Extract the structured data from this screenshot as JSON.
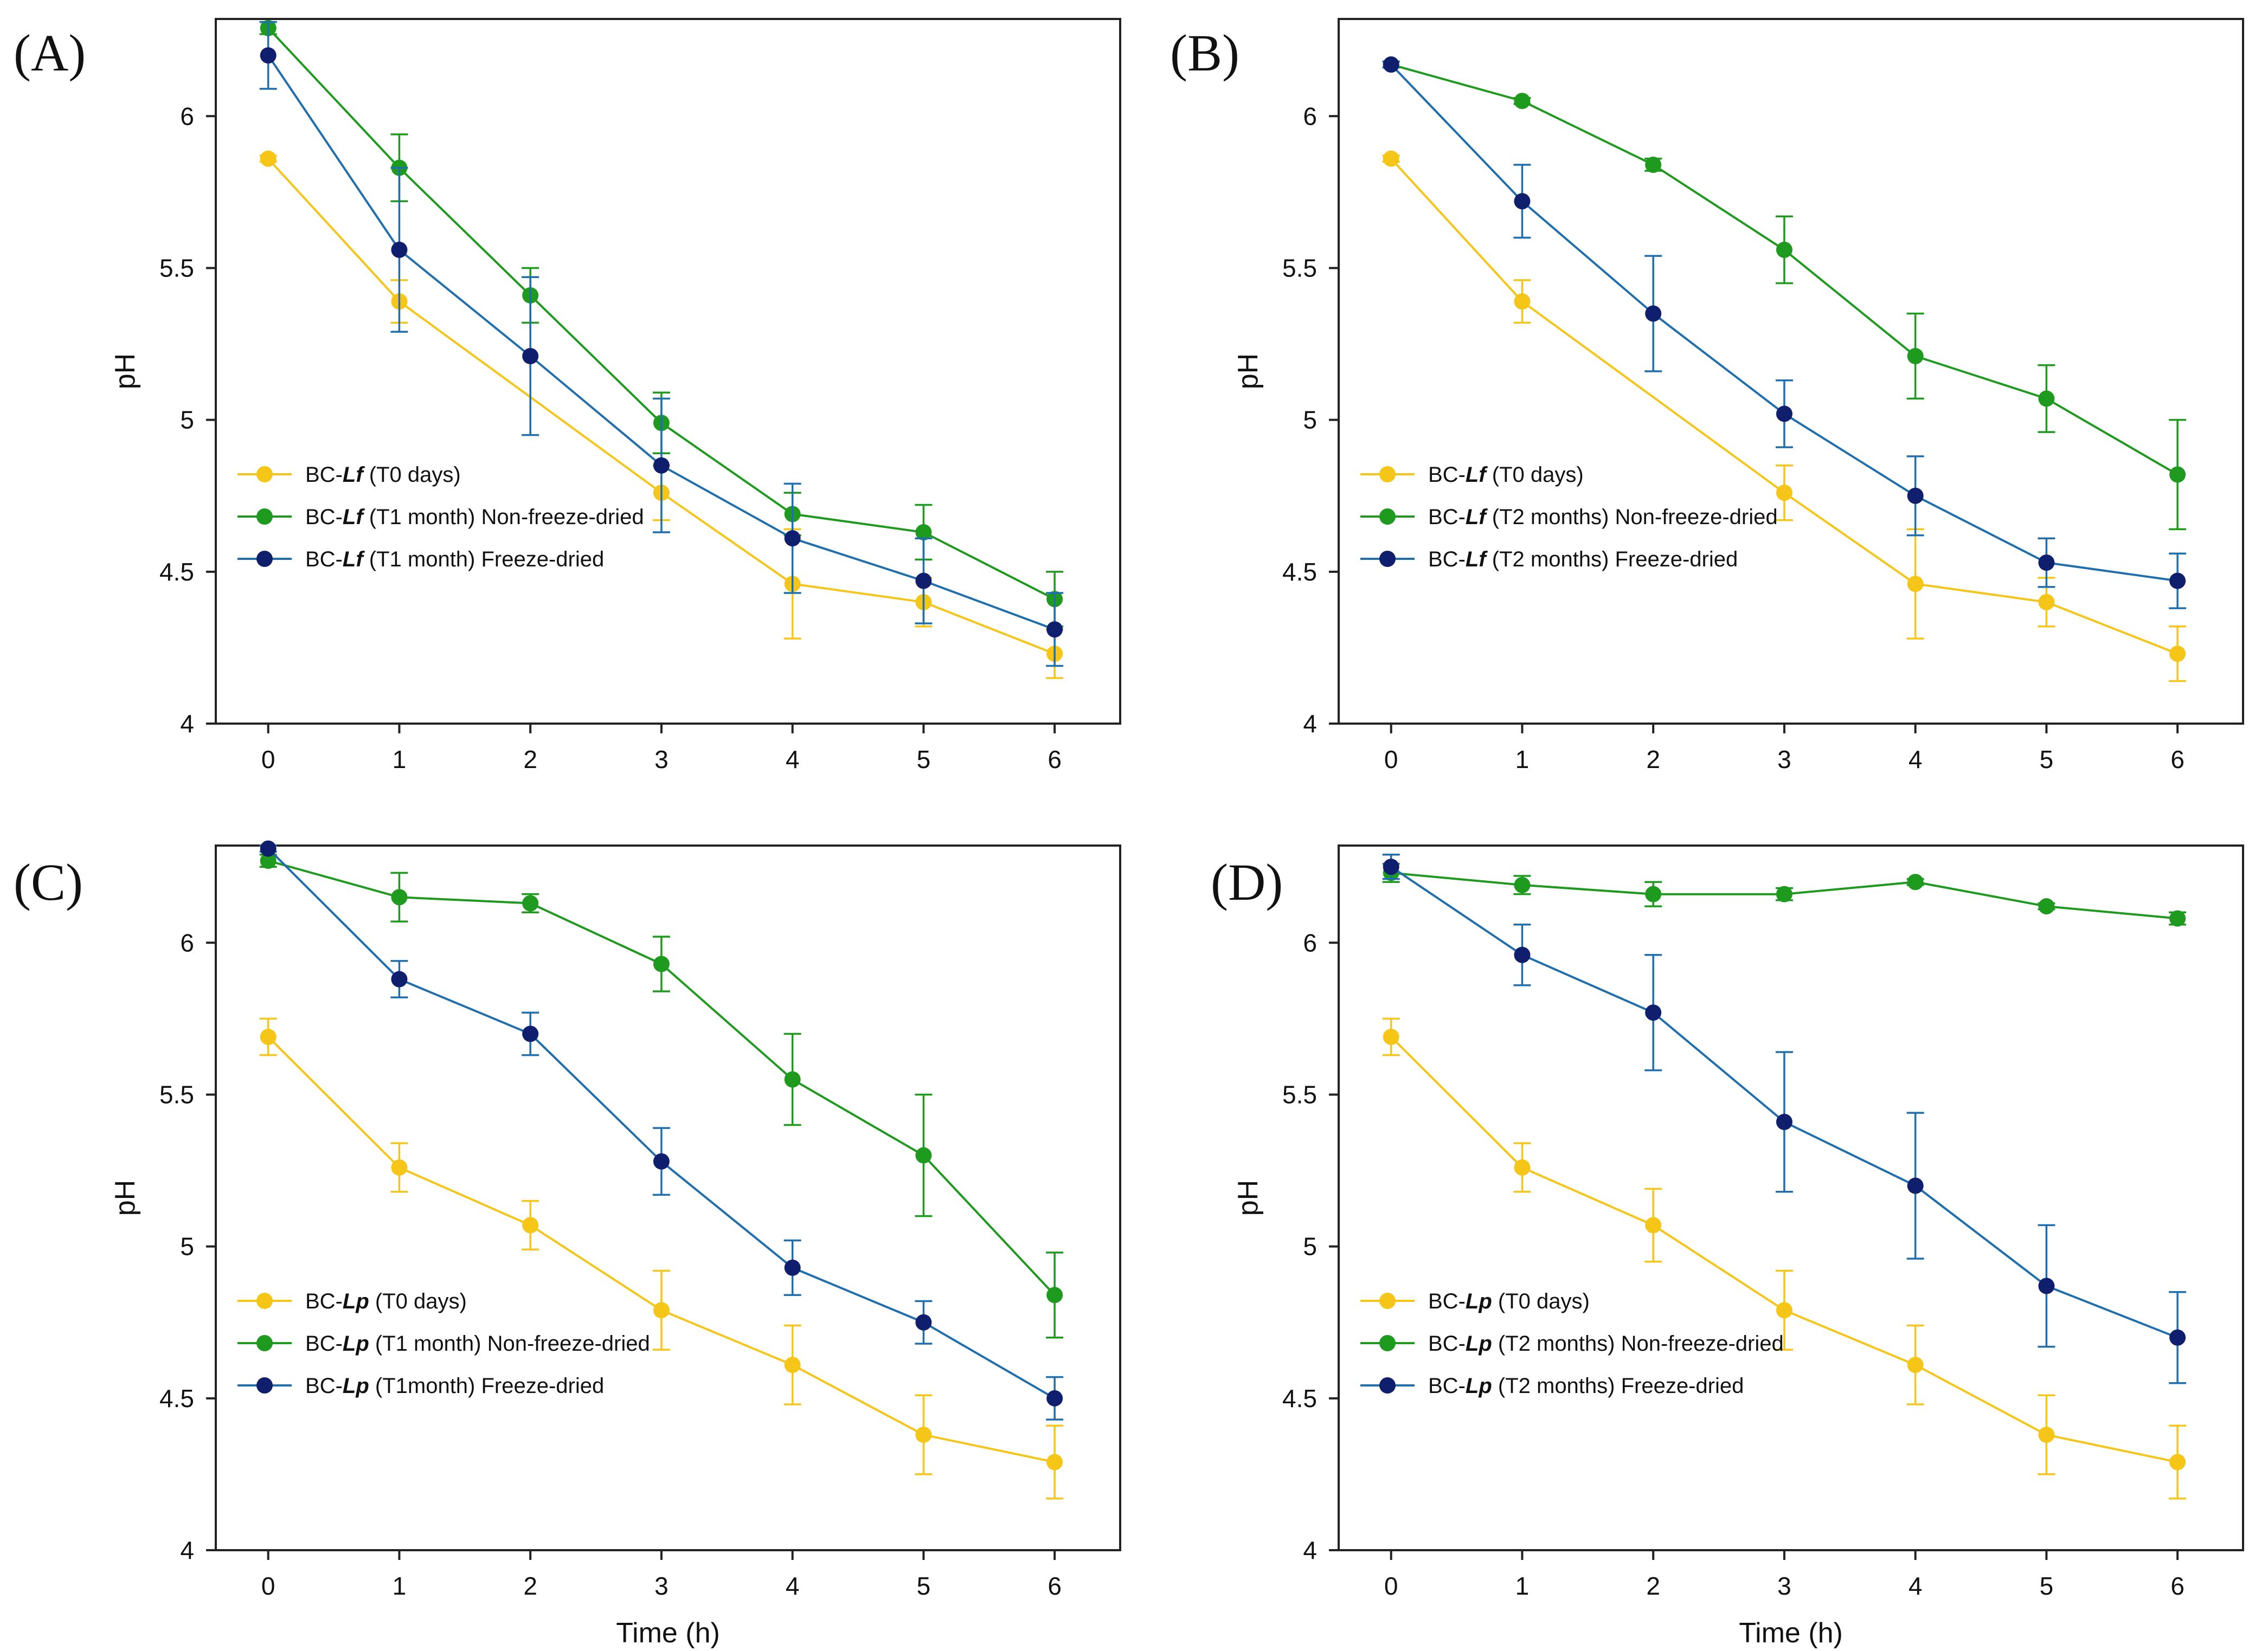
{
  "colors": {
    "t0": "#f5c518",
    "nonfreeze": "#1e9a1e",
    "freeze_line": "#1f6fae",
    "freeze_marker": "#0f1f6e",
    "axis": "#222222"
  },
  "chart_data": [
    {
      "type": "line",
      "panel_label": "(A)",
      "xlabel": "",
      "ylabel": "pH",
      "x": [
        0,
        1,
        2,
        3,
        4,
        5,
        6
      ],
      "xlim": [
        -0.4,
        6.5
      ],
      "ylim": [
        4,
        6.32
      ],
      "yticks": [
        "4",
        "4.5",
        "5",
        "5.5",
        "6"
      ],
      "xticks": [
        "0",
        "1",
        "2",
        "3",
        "4",
        "5",
        "6"
      ],
      "legend_position": "lower-left",
      "series": [
        {
          "key": "t0",
          "legend_prefix": "BC-",
          "legend_italic": "Lf",
          "legend_suffix": " (T0 days)",
          "values": [
            5.86,
            5.39,
            null,
            4.76,
            4.46,
            4.4,
            4.23
          ],
          "errors": [
            0.01,
            0.07,
            null,
            0.09,
            0.18,
            0.08,
            0.08
          ]
        },
        {
          "key": "nonfreeze",
          "legend_prefix": "BC-",
          "legend_italic": "Lf",
          "legend_suffix": " (T1 month) Non-freeze-dried",
          "values": [
            6.29,
            5.83,
            5.41,
            4.99,
            4.69,
            4.63,
            4.41
          ],
          "errors": [
            0.02,
            0.11,
            0.09,
            0.1,
            0.07,
            0.09,
            0.09
          ]
        },
        {
          "key": "freeze",
          "legend_prefix": "BC-",
          "legend_italic": "Lf",
          "legend_suffix": " (T1 month)  Freeze-dried",
          "values": [
            6.2,
            5.56,
            5.21,
            4.85,
            4.61,
            4.47,
            4.31
          ],
          "errors": [
            0.11,
            0.27,
            0.26,
            0.22,
            0.18,
            0.14,
            0.12
          ]
        }
      ]
    },
    {
      "type": "line",
      "panel_label": "(B)",
      "xlabel": "",
      "ylabel": "pH",
      "x": [
        0,
        1,
        2,
        3,
        4,
        5,
        6
      ],
      "xlim": [
        -0.4,
        6.5
      ],
      "ylim": [
        4,
        6.32
      ],
      "yticks": [
        "4",
        "4.5",
        "5",
        "5.5",
        "6"
      ],
      "xticks": [
        "0",
        "1",
        "2",
        "3",
        "4",
        "5",
        "6"
      ],
      "legend_position": "lower-left",
      "series": [
        {
          "key": "t0",
          "legend_prefix": "BC-",
          "legend_italic": "Lf",
          "legend_suffix": " (T0 days)",
          "values": [
            5.86,
            5.39,
            null,
            4.76,
            4.46,
            4.4,
            4.23
          ],
          "errors": [
            0.01,
            0.07,
            null,
            0.09,
            0.18,
            0.08,
            0.09
          ]
        },
        {
          "key": "nonfreeze",
          "legend_prefix": "BC-",
          "legend_italic": "Lf",
          "legend_suffix": " (T2 months) Non-freeze-dried",
          "values": [
            6.17,
            6.05,
            5.84,
            5.56,
            5.21,
            5.07,
            4.82
          ],
          "errors": [
            0.01,
            0.01,
            0.02,
            0.11,
            0.14,
            0.11,
            0.18
          ]
        },
        {
          "key": "freeze",
          "legend_prefix": "BC-",
          "legend_italic": "Lf",
          "legend_suffix": " (T2 months) Freeze-dried",
          "values": [
            6.17,
            5.72,
            5.35,
            5.02,
            4.75,
            4.53,
            4.47
          ],
          "errors": [
            0.01,
            0.12,
            0.19,
            0.11,
            0.13,
            0.08,
            0.09
          ]
        }
      ]
    },
    {
      "type": "line",
      "panel_label": "(C)",
      "xlabel": "Time (h)",
      "ylabel": "pH",
      "x": [
        0,
        1,
        2,
        3,
        4,
        5,
        6
      ],
      "xlim": [
        -0.4,
        6.5
      ],
      "ylim": [
        4,
        6.32
      ],
      "yticks": [
        "4",
        "4.5",
        "5",
        "5.5",
        "6"
      ],
      "xticks": [
        "0",
        "1",
        "2",
        "3",
        "4",
        "5",
        "6"
      ],
      "legend_position": "lower-left",
      "series": [
        {
          "key": "t0",
          "legend_prefix": "BC-",
          "legend_italic": "Lp",
          "legend_suffix": " (T0 days)",
          "values": [
            5.69,
            5.26,
            5.07,
            4.79,
            4.61,
            4.38,
            4.29
          ],
          "errors": [
            0.06,
            0.08,
            0.08,
            0.13,
            0.13,
            0.13,
            0.12
          ]
        },
        {
          "key": "nonfreeze",
          "legend_prefix": "BC-",
          "legend_italic": "Lp",
          "legend_suffix": " (T1 month) Non-freeze-dried",
          "values": [
            6.27,
            6.15,
            6.13,
            5.93,
            5.55,
            5.3,
            4.84
          ],
          "errors": [
            0.02,
            0.08,
            0.03,
            0.09,
            0.15,
            0.2,
            0.14
          ]
        },
        {
          "key": "freeze",
          "legend_prefix": "BC-",
          "legend_italic": "Lp",
          "legend_suffix": " (T1month)  Freeze-dried",
          "values": [
            6.31,
            5.88,
            5.7,
            5.28,
            4.93,
            4.75,
            4.5
          ],
          "errors": [
            0.01,
            0.06,
            0.07,
            0.11,
            0.09,
            0.07,
            0.07
          ]
        }
      ]
    },
    {
      "type": "line",
      "panel_label": "(D)",
      "xlabel": "Time (h)",
      "ylabel": "pH",
      "x": [
        0,
        1,
        2,
        3,
        4,
        5,
        6
      ],
      "xlim": [
        -0.4,
        6.5
      ],
      "ylim": [
        4,
        6.32
      ],
      "yticks": [
        "4",
        "4.5",
        "5",
        "5.5",
        "6"
      ],
      "xticks": [
        "0",
        "1",
        "2",
        "3",
        "4",
        "5",
        "6"
      ],
      "legend_position": "lower-left",
      "series": [
        {
          "key": "t0",
          "legend_prefix": "BC-",
          "legend_italic": "Lp",
          "legend_suffix": " (T0 days)",
          "values": [
            5.69,
            5.26,
            5.07,
            4.79,
            4.61,
            4.38,
            4.29
          ],
          "errors": [
            0.06,
            0.08,
            0.12,
            0.13,
            0.13,
            0.13,
            0.12
          ]
        },
        {
          "key": "nonfreeze",
          "legend_prefix": "BC-",
          "legend_italic": "Lp",
          "legend_suffix": " (T2 months) Non-freeze-dried",
          "values": [
            6.23,
            6.19,
            6.16,
            6.16,
            6.2,
            6.12,
            6.08
          ],
          "errors": [
            0.03,
            0.03,
            0.04,
            0.02,
            0.01,
            0.01,
            0.02
          ]
        },
        {
          "key": "freeze",
          "legend_prefix": "BC-",
          "legend_italic": "Lp",
          "legend_suffix": " (T2 months)  Freeze-dried",
          "values": [
            6.25,
            5.96,
            5.77,
            5.41,
            5.2,
            4.87,
            4.7
          ],
          "errors": [
            0.04,
            0.1,
            0.19,
            0.23,
            0.24,
            0.2,
            0.15
          ]
        }
      ]
    }
  ]
}
